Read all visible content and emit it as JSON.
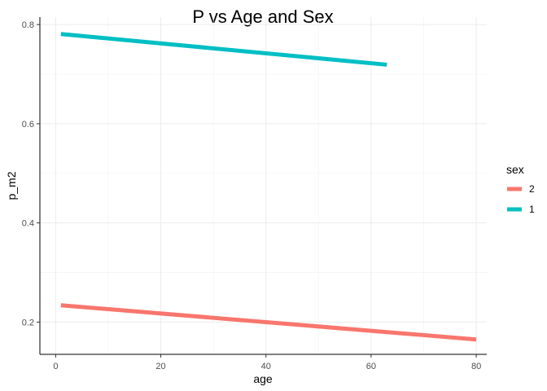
{
  "chart_data": {
    "type": "line",
    "title": "P vs Age and Sex",
    "xlabel": "age",
    "ylabel": "p_m2",
    "xlim": [
      -3,
      82
    ],
    "ylim": [
      0.135,
      0.815
    ],
    "xticks": [
      0,
      20,
      40,
      60,
      80
    ],
    "yticks": [
      0.2,
      0.4,
      0.6,
      0.8
    ],
    "xtick_labels": [
      "0",
      "20",
      "40",
      "60",
      "80"
    ],
    "ytick_labels": [
      "0.2",
      "0.4",
      "0.6",
      "0.8"
    ],
    "grid": true,
    "legend": {
      "title": "sex",
      "position": "right",
      "entries": [
        {
          "label": "2",
          "color": "#F8766D"
        },
        {
          "label": "1",
          "color": "#00BFC4"
        }
      ]
    },
    "series": [
      {
        "name": "2",
        "color": "#F8766D",
        "x": [
          1,
          80
        ],
        "y": [
          0.234,
          0.165
        ]
      },
      {
        "name": "1",
        "color": "#00BFC4",
        "x": [
          1,
          63
        ],
        "y": [
          0.781,
          0.719
        ]
      }
    ]
  }
}
